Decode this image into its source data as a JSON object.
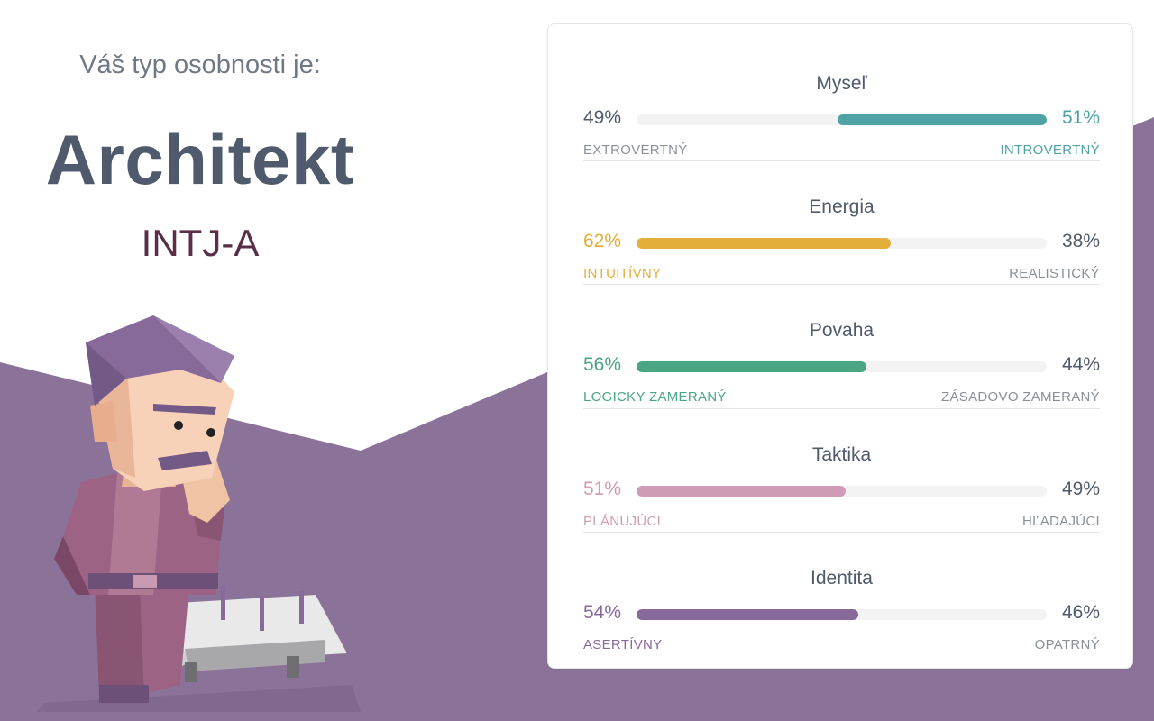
{
  "intro": "Váš typ osobnosti je:",
  "type_name": "Architekt",
  "type_code": "INTJ-A",
  "colors": {
    "background_shape": "#8b7299",
    "myslet": "#4fa3a4",
    "energia": "#e4ae3a",
    "povaha": "#4aa584",
    "taktika": "#d09bb4",
    "identita": "#87699a",
    "neutral_text": "#4f5a6c",
    "neutral_label": "#8a909b"
  },
  "traits": [
    {
      "title": "Myseľ",
      "left_percent": "49%",
      "right_percent": "51%",
      "left_label": "EXTROVERTNÝ",
      "right_label": "INTROVERTNÝ",
      "dominant": "right",
      "dominant_value": 0.51,
      "color": "#4fa3a4"
    },
    {
      "title": "Energia",
      "left_percent": "62%",
      "right_percent": "38%",
      "left_label": "INTUITÍVNY",
      "right_label": "REALISTICKÝ",
      "dominant": "left",
      "dominant_value": 0.62,
      "color": "#e4ae3a"
    },
    {
      "title": "Povaha",
      "left_percent": "56%",
      "right_percent": "44%",
      "left_label": "LOGICKY ZAMERANÝ",
      "right_label": "ZÁSADOVO ZAMERANÝ",
      "dominant": "left",
      "dominant_value": 0.56,
      "color": "#4aa584"
    },
    {
      "title": "Taktika",
      "left_percent": "51%",
      "right_percent": "49%",
      "left_label": "PLÁNUJÚCI",
      "right_label": "HĽADAJÚCI",
      "dominant": "left",
      "dominant_value": 0.51,
      "color": "#d09bb4"
    },
    {
      "title": "Identita",
      "left_percent": "54%",
      "right_percent": "46%",
      "left_label": "ASERTÍVNY",
      "right_label": "OPATRNÝ",
      "dominant": "left",
      "dominant_value": 0.54,
      "color": "#87699a"
    }
  ]
}
